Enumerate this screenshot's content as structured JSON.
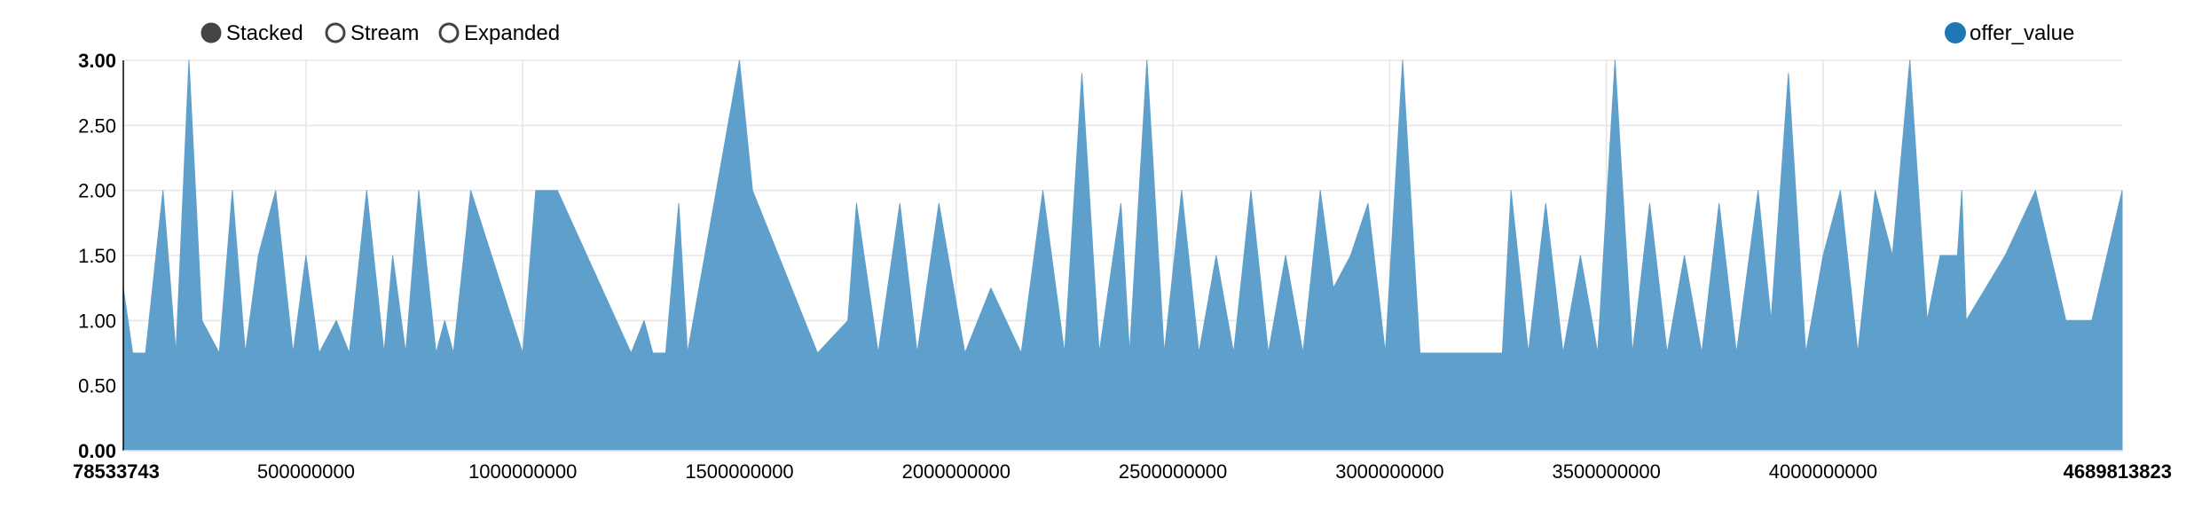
{
  "controls": {
    "modes": [
      {
        "label": "Stacked",
        "selected": true
      },
      {
        "label": "Stream",
        "selected": false
      },
      {
        "label": "Expanded",
        "selected": false
      }
    ]
  },
  "chart_data": {
    "type": "area",
    "style": "stacked",
    "grid": true,
    "legend_position": "top-right",
    "series": [
      {
        "name": "offer_value",
        "color": "#1f77b4",
        "fill_color": "#5f9fcb",
        "x": [
          78533743,
          100000000,
          130000000,
          170000000,
          200000000,
          230000000,
          260000000,
          300000000,
          330000000,
          360000000,
          390000000,
          430000000,
          470000000,
          500000000,
          530000000,
          570000000,
          600000000,
          640000000,
          680000000,
          700000000,
          730000000,
          760000000,
          800000000,
          820000000,
          840000000,
          880000000,
          1000000000,
          1030000000,
          1080000000,
          1250000000,
          1280000000,
          1300000000,
          1330000000,
          1360000000,
          1380000000,
          1500000000,
          1530000000,
          1680000000,
          1750000000,
          1770000000,
          1820000000,
          1870000000,
          1910000000,
          1960000000,
          2020000000,
          2080000000,
          2150000000,
          2200000000,
          2250000000,
          2290000000,
          2330000000,
          2380000000,
          2400000000,
          2440000000,
          2480000000,
          2520000000,
          2560000000,
          2600000000,
          2640000000,
          2680000000,
          2720000000,
          2760000000,
          2800000000,
          2840000000,
          2870000000,
          2910000000,
          2950000000,
          2990000000,
          3030000000,
          3070000000,
          3260000000,
          3280000000,
          3320000000,
          3360000000,
          3400000000,
          3440000000,
          3480000000,
          3520000000,
          3560000000,
          3600000000,
          3640000000,
          3680000000,
          3720000000,
          3760000000,
          3800000000,
          3850000000,
          3880000000,
          3920000000,
          3960000000,
          4000000000,
          4040000000,
          4080000000,
          4120000000,
          4160000000,
          4200000000,
          4240000000,
          4270000000,
          4310000000,
          4320000000,
          4330000000,
          4420000000,
          4490000000,
          4560000000,
          4620000000,
          4689813823
        ],
        "values": [
          1.25,
          0.75,
          0.75,
          2.0,
          0.75,
          3.0,
          1.0,
          0.75,
          2.0,
          0.75,
          1.5,
          2.0,
          0.75,
          1.5,
          0.75,
          1.0,
          0.75,
          2.0,
          0.75,
          1.5,
          0.75,
          2.0,
          0.75,
          1.0,
          0.75,
          2.0,
          0.75,
          2.0,
          2.0,
          0.75,
          1.0,
          0.75,
          0.75,
          1.9,
          0.75,
          3.0,
          2.0,
          0.75,
          1.0,
          1.9,
          0.75,
          1.9,
          0.75,
          1.9,
          0.75,
          1.25,
          0.75,
          2.0,
          0.75,
          2.9,
          0.75,
          1.9,
          0.75,
          3.0,
          0.75,
          2.0,
          0.75,
          1.5,
          0.75,
          2.0,
          0.75,
          1.5,
          0.75,
          2.0,
          1.25,
          1.5,
          1.9,
          0.75,
          3.0,
          0.75,
          0.75,
          2.0,
          0.75,
          1.9,
          0.75,
          1.5,
          0.75,
          3.0,
          0.75,
          1.9,
          0.75,
          1.5,
          0.75,
          1.9,
          0.75,
          2.0,
          1.0,
          2.9,
          0.75,
          1.5,
          2.0,
          0.75,
          2.0,
          1.5,
          3.0,
          1.0,
          1.5,
          1.5,
          2.0,
          1.0,
          1.5,
          2.0,
          1.0,
          1.0,
          2.0
        ]
      }
    ],
    "x_domain": [
      78533743,
      4689813823
    ],
    "ylim": [
      0,
      3
    ],
    "x_ticks": [
      78533743,
      500000000,
      1000000000,
      1500000000,
      2000000000,
      2500000000,
      3000000000,
      3500000000,
      4000000000,
      4689813823
    ],
    "x_tick_labels": [
      "78533743",
      "500000000",
      "1000000000",
      "1500000000",
      "2000000000",
      "2500000000",
      "3000000000",
      "3500000000",
      "4000000000",
      "4689813823"
    ],
    "y_ticks": [
      0,
      0.5,
      1,
      1.5,
      2,
      2.5,
      3
    ],
    "y_tick_labels": [
      "0.00",
      "0.50",
      "1.00",
      "1.50",
      "2.00",
      "2.50",
      "3.00"
    ]
  }
}
